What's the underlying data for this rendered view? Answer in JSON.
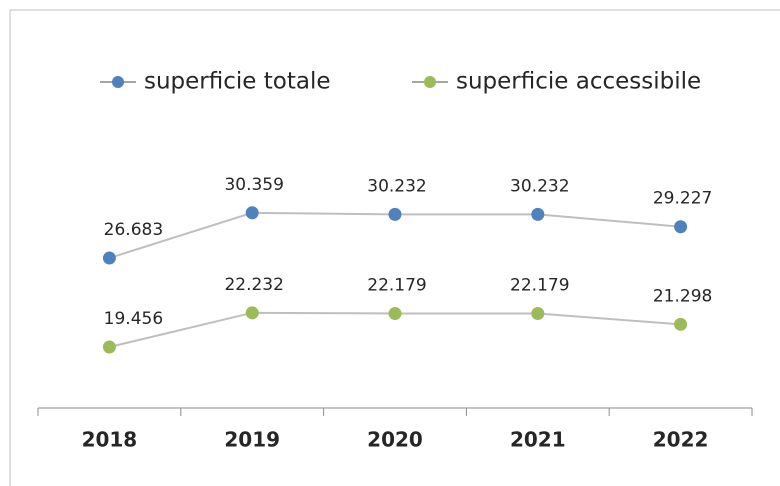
{
  "chart_data": {
    "type": "line",
    "categories": [
      "2018",
      "2019",
      "2020",
      "2021",
      "2022"
    ],
    "series": [
      {
        "name": "superficie totale",
        "color": "#4f81bd",
        "values": [
          26.683,
          30.359,
          30.232,
          30.232,
          29.227
        ]
      },
      {
        "name": "superficie accessibile",
        "color": "#9bbb59",
        "values": [
          19.456,
          22.232,
          22.179,
          22.179,
          21.298
        ]
      }
    ],
    "ylim": [
      14.5,
      34
    ],
    "legend": "top"
  }
}
